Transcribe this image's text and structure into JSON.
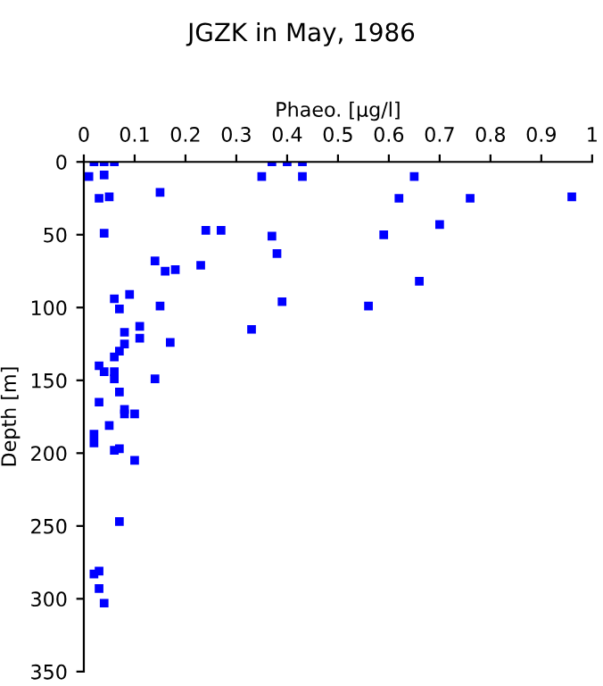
{
  "chart_data": {
    "type": "scatter",
    "title": "JGZK in May, 1986",
    "xlabel": "Phaeo. [µg/l]",
    "ylabel": "Depth [m]",
    "xlim": [
      0,
      1
    ],
    "xticks": [
      0,
      0.1,
      0.2,
      0.3,
      0.4,
      0.5,
      0.6,
      0.7,
      0.8,
      0.9,
      1
    ],
    "ylim": [
      350,
      0
    ],
    "yticks": [
      0,
      50,
      100,
      150,
      200,
      250,
      300,
      350
    ],
    "grid": false,
    "legend": false,
    "marker": "square",
    "series": [
      {
        "color": "#0000ff",
        "x": [
          0.01,
          0.02,
          0.04,
          0.06,
          0.04,
          0.03,
          0.05,
          0.04,
          0.15,
          0.14,
          0.16,
          0.18,
          0.23,
          0.24,
          0.27,
          0.35,
          0.37,
          0.4,
          0.43,
          0.43,
          0.37,
          0.38,
          0.59,
          0.62,
          0.65,
          0.7,
          0.76,
          0.66,
          0.96,
          0.39,
          0.56,
          0.06,
          0.09,
          0.07,
          0.15,
          0.33,
          0.08,
          0.11,
          0.11,
          0.17,
          0.08,
          0.07,
          0.06,
          0.03,
          0.04,
          0.06,
          0.06,
          0.14,
          0.07,
          0.03,
          0.08,
          0.08,
          0.1,
          0.05,
          0.02,
          0.02,
          0.06,
          0.07,
          0.1,
          0.07,
          0.03,
          0.02,
          0.03,
          0.04
        ],
        "values": [
          10,
          0,
          0,
          0,
          9,
          25,
          24,
          49,
          21,
          68,
          75,
          74,
          71,
          47,
          47,
          10,
          0,
          0,
          0,
          10,
          51,
          63,
          50,
          25,
          10,
          43,
          25,
          82,
          24,
          96,
          99,
          94,
          91,
          101,
          99,
          115,
          117,
          113,
          121,
          124,
          125,
          130,
          134,
          140,
          144,
          144,
          149,
          149,
          158,
          165,
          170,
          173,
          173,
          181,
          187,
          193,
          198,
          197,
          205,
          247,
          281,
          283,
          293,
          303
        ]
      }
    ]
  }
}
